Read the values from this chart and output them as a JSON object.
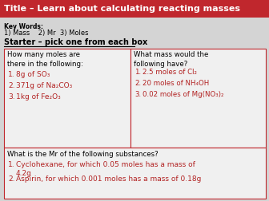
{
  "title": "Title – Learn about calculating reacting masses",
  "title_bg": "#C0272D",
  "title_color": "#FFFFFF",
  "key_words_label": "Key Words:",
  "key_words": "1) Mass    2) Mr  3) Moles",
  "starter_text": "Starter – pick one from each box",
  "box1_header": "How many moles are\nthere in the following:",
  "box1_items": [
    "8g of SO₃",
    "371g of Na₂CO₃",
    "1kg of Fe₂O₃"
  ],
  "box2_header": "What mass would the\nfollowing have?",
  "box2_items": [
    "2.5 moles of Cl₂",
    "20 moles of NH₄OH",
    "0.02 moles of Mg(NO₃)₂"
  ],
  "box3_header": "What is the Mr of the following substances?",
  "box3_items": [
    "Cyclohexane, for which 0.05 moles has a mass of\n4.2g",
    "Aspirin, for which 0.001 moles has a mass of 0.18g"
  ],
  "red_color": "#B22222",
  "border_color": "#C0272D",
  "bg_color": "#D4D4D4",
  "box_bg": "#F0F0F0",
  "white": "#FFFFFF"
}
